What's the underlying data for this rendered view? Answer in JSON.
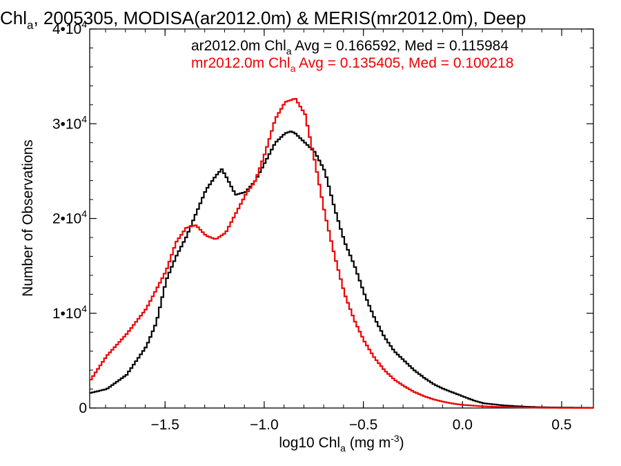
{
  "chart_data": {
    "type": "line",
    "title": {
      "pre": "Chl",
      "sub": "a",
      "post": ", 2005305, MODISA(ar2012.0m) & MERIS(mr2012.0m), Deep"
    },
    "xlabel": {
      "pre": "log10 Chl",
      "sub": "a",
      "mid": " (mg m",
      "sup": "-3",
      "post": ")"
    },
    "ylabel": "Number of Observations",
    "xlim": [
      -1.88,
      0.66
    ],
    "ylim": [
      0,
      40000
    ],
    "x_ticks": [
      {
        "value": -1.5,
        "label": "−1.5"
      },
      {
        "value": -1.0,
        "label": "−1.0"
      },
      {
        "value": -0.5,
        "label": "−0.5"
      },
      {
        "value": 0.0,
        "label": "0.0"
      },
      {
        "value": 0.5,
        "label": "0.5"
      }
    ],
    "y_ticks": [
      {
        "value": 0,
        "base": "0",
        "exp": ""
      },
      {
        "value": 10000,
        "base": "1•10",
        "exp": "4"
      },
      {
        "value": 20000,
        "base": "2•10",
        "exp": "4"
      },
      {
        "value": 30000,
        "base": "3•10",
        "exp": "4"
      },
      {
        "value": 40000,
        "base": "4•10",
        "exp": "4"
      }
    ],
    "grid": false,
    "legend_position": "top-right",
    "series": [
      {
        "legend": {
          "pre": "ar2012.0m Chl",
          "sub": "a",
          "post": " Avg = 0.166592, Med = 0.115984"
        },
        "color": "#000000",
        "x": [
          -1.88,
          -1.8,
          -1.7,
          -1.6,
          -1.55,
          -1.5,
          -1.45,
          -1.4,
          -1.35,
          -1.3,
          -1.25,
          -1.22,
          -1.2,
          -1.15,
          -1.1,
          -1.05,
          -1.0,
          -0.95,
          -0.9,
          -0.87,
          -0.85,
          -0.8,
          -0.75,
          -0.7,
          -0.65,
          -0.6,
          -0.55,
          -0.5,
          -0.45,
          -0.4,
          -0.35,
          -0.3,
          -0.25,
          -0.2,
          -0.15,
          -0.1,
          -0.05,
          0.0,
          0.05,
          0.1,
          0.2,
          0.3,
          0.4,
          0.5,
          0.66
        ],
        "y": [
          1600,
          2000,
          3500,
          6500,
          9000,
          13500,
          16000,
          18000,
          20500,
          23000,
          24500,
          25200,
          24500,
          22500,
          22800,
          24000,
          26000,
          28000,
          29000,
          29200,
          29000,
          28000,
          27000,
          25000,
          21000,
          17500,
          15000,
          12000,
          9500,
          7500,
          6000,
          5000,
          4000,
          3200,
          2500,
          2000,
          1600,
          1200,
          800,
          500,
          280,
          150,
          80,
          50,
          20
        ]
      },
      {
        "legend": {
          "pre": "mr2012.0m Chl",
          "sub": "a",
          "post": " Avg = 0.135405, Med = 0.100218"
        },
        "color": "#ee0000",
        "x": [
          -1.88,
          -1.8,
          -1.7,
          -1.6,
          -1.55,
          -1.5,
          -1.45,
          -1.4,
          -1.35,
          -1.3,
          -1.25,
          -1.2,
          -1.15,
          -1.1,
          -1.05,
          -1.0,
          -0.95,
          -0.9,
          -0.87,
          -0.85,
          -0.8,
          -0.75,
          -0.7,
          -0.65,
          -0.6,
          -0.55,
          -0.5,
          -0.45,
          -0.4,
          -0.35,
          -0.3,
          -0.25,
          -0.2,
          -0.15,
          -0.1,
          -0.05,
          0.0,
          0.1,
          0.2,
          0.3,
          0.4,
          0.5,
          0.66
        ],
        "y": [
          3000,
          5500,
          7800,
          10500,
          12500,
          14500,
          17500,
          19000,
          19300,
          18200,
          17800,
          18500,
          20500,
          22500,
          24000,
          27000,
          30500,
          32300,
          32500,
          32700,
          31000,
          26000,
          20500,
          16000,
          12000,
          9200,
          7000,
          5300,
          4000,
          3000,
          2300,
          1700,
          1250,
          900,
          650,
          450,
          320,
          180,
          100,
          60,
          30,
          15,
          5
        ]
      }
    ]
  }
}
